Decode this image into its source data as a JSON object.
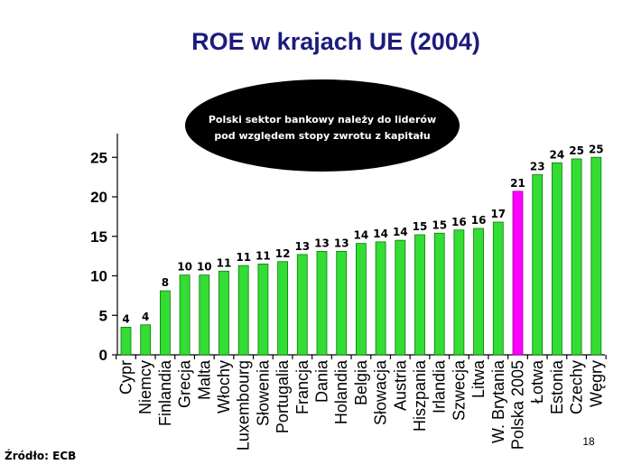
{
  "callout": {
    "lines": [
      "Polski sektor bankowy należy do liderów",
      "pod względem stopy zwrotu z kapitału"
    ]
  },
  "source": "Źródło: ECB",
  "page_number": "18",
  "colors": {
    "title": "#1c1c7c",
    "bar": "#33dd33",
    "bar_stroke": "#0a7a0a",
    "highlight": "#ff00ff",
    "highlight_stroke": "#990099",
    "callout_fill": "#000000"
  },
  "chart_data": {
    "type": "bar",
    "title": "ROE w krajach UE (2004)",
    "xlabel": "",
    "ylabel": "",
    "ylim": [
      0,
      28
    ],
    "y_ticks": [
      0,
      5,
      10,
      15,
      20,
      25
    ],
    "grid": false,
    "legend": "none",
    "highlight_index": 20,
    "categories": [
      "Cypr",
      "Niemcy",
      "Finlandia",
      "Grecja",
      "Malta",
      "Włochy",
      "Luxembourg",
      "Słowenia",
      "Portugalia",
      "Francja",
      "Dania",
      "Holandia",
      "Belgia",
      "Słowacja",
      "Austria",
      "Hiszpania",
      "Irlandia",
      "Szwecja",
      "Litwa",
      "W. Brytania",
      "Polska 2005",
      "Łotwa",
      "Estonia",
      "Czechy",
      "Węgry"
    ],
    "values": [
      3.5,
      3.8,
      8.1,
      10.1,
      10.1,
      10.6,
      11.3,
      11.5,
      11.8,
      12.7,
      13.1,
      13.1,
      14.1,
      14.3,
      14.5,
      15.2,
      15.4,
      15.8,
      16.0,
      16.8,
      20.7,
      22.8,
      24.3,
      24.8,
      25.0
    ],
    "labels": [
      "4",
      "4",
      "8",
      "10",
      "10",
      "11",
      "11",
      "11",
      "12",
      "13",
      "13",
      "13",
      "14",
      "14",
      "14",
      "15",
      "15",
      "16",
      "16",
      "17",
      "21",
      "23",
      "24",
      "25",
      "25"
    ]
  }
}
